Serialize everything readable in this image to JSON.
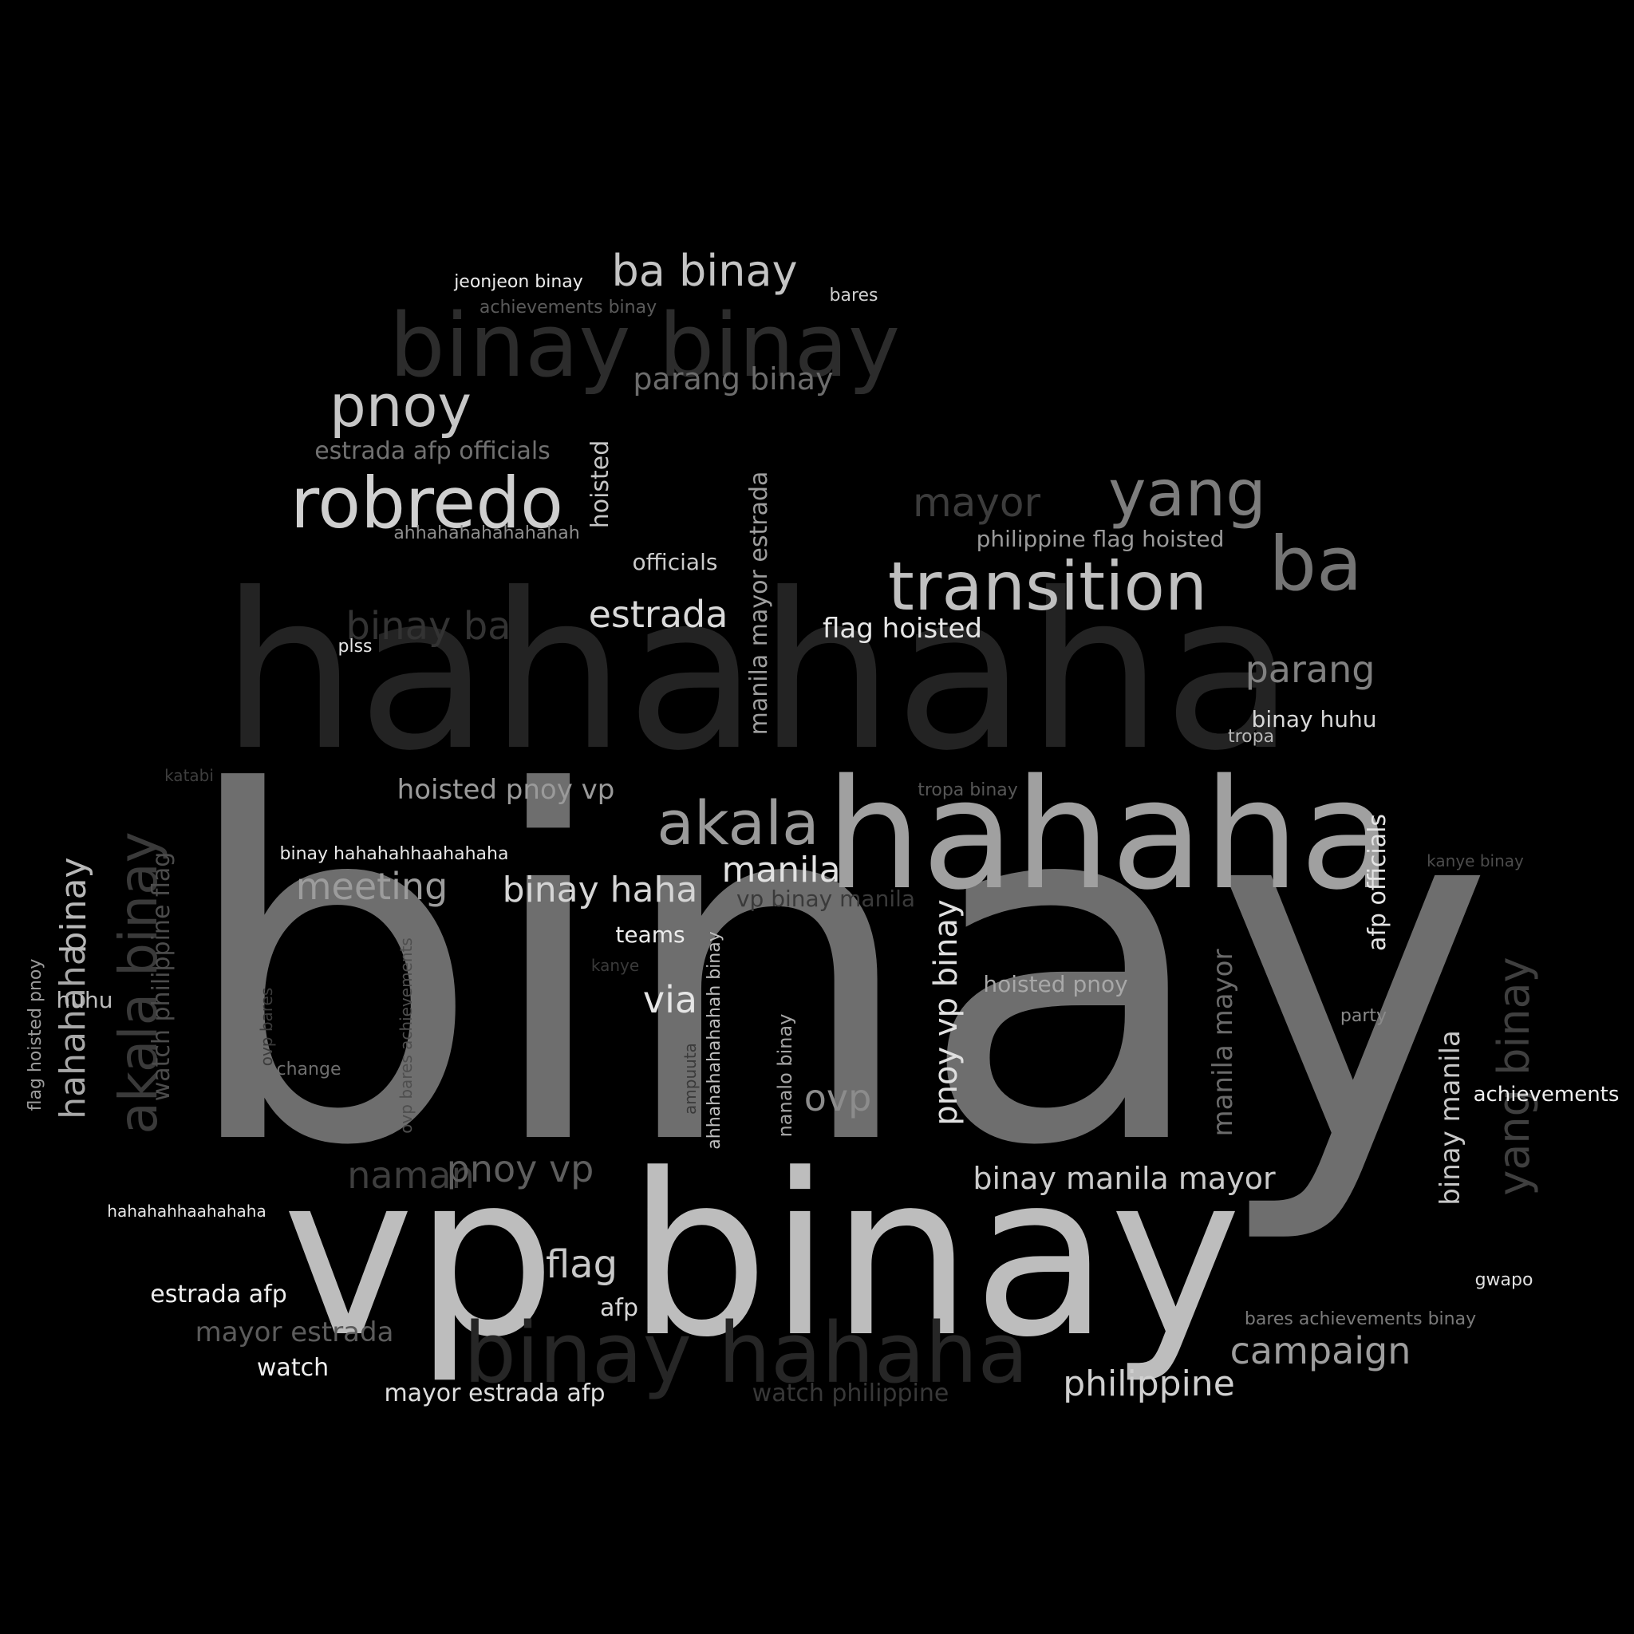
{
  "background": "#000000",
  "words": [
    {
      "text": "binay",
      "color": "#6e6e6e",
      "rotate": false
    },
    {
      "text": "hahahaha",
      "color": "#232323",
      "rotate": false
    },
    {
      "text": "vp binay",
      "color": "#bdbdbd",
      "rotate": false
    },
    {
      "text": "hahaha",
      "color": "#a0a0a0",
      "rotate": false
    },
    {
      "text": "binay binay",
      "color": "#2c2c2c",
      "rotate": false
    },
    {
      "text": "binay hahaha",
      "color": "#262626",
      "rotate": false
    },
    {
      "text": "robredo",
      "color": "#cfcfcf",
      "rotate": false
    },
    {
      "text": "transition",
      "color": "#c0c0c0",
      "rotate": false
    },
    {
      "text": "yang",
      "color": "#7d7d7d",
      "rotate": false
    },
    {
      "text": "ba",
      "color": "#747474",
      "rotate": false
    },
    {
      "text": "akala",
      "color": "#9a9a9a",
      "rotate": false
    },
    {
      "text": "pnoy",
      "color": "#c6c6c6",
      "rotate": false
    },
    {
      "text": "ba binay",
      "color": "#c4c4c4",
      "rotate": false
    },
    {
      "text": "akala binay",
      "color": "#3a3a3a",
      "rotate": true
    },
    {
      "text": "yang binay",
      "color": "#3f3f3f",
      "rotate": true
    },
    {
      "text": "mayor",
      "color": "#3c3c3c",
      "rotate": false
    },
    {
      "text": "estrada",
      "color": "#dadada",
      "rotate": false
    },
    {
      "text": "binay ba",
      "color": "#333333",
      "rotate": false
    },
    {
      "text": "parang",
      "color": "#808080",
      "rotate": false
    },
    {
      "text": "manila",
      "color": "#e2e2e2",
      "rotate": false
    },
    {
      "text": "meeting",
      "color": "#9c9c9c",
      "rotate": false
    },
    {
      "text": "binay haha",
      "color": "#d5d5d5",
      "rotate": false
    },
    {
      "text": "via",
      "color": "#e6e6e6",
      "rotate": false
    },
    {
      "text": "ovp",
      "color": "#8c8c8c",
      "rotate": false
    },
    {
      "text": "naman",
      "color": "#3e3e3e",
      "rotate": false
    },
    {
      "text": "pnoy vp",
      "color": "#5e5e5e",
      "rotate": false
    },
    {
      "text": "flag",
      "color": "#c9c9c9",
      "rotate": false
    },
    {
      "text": "campaign",
      "color": "#9e9e9e",
      "rotate": false
    },
    {
      "text": "philippine",
      "color": "#d0d0d0",
      "rotate": false
    },
    {
      "text": "binay manila mayor",
      "color": "#cbcbcb",
      "rotate": false
    },
    {
      "text": "parang binay",
      "color": "#6c6c6c",
      "rotate": false
    },
    {
      "text": "hoisted pnoy vp",
      "color": "#9a9a9a",
      "rotate": false
    },
    {
      "text": "mayor estrada",
      "color": "#5c5c5c",
      "rotate": false
    },
    {
      "text": "flag hoisted",
      "color": "#e6e6e6",
      "rotate": false
    },
    {
      "text": "estrada afp officials",
      "color": "#717171",
      "rotate": false
    },
    {
      "text": "pnoy vp binay",
      "color": "#e0e0e0",
      "rotate": true
    },
    {
      "text": "hahahaha",
      "color": "#a8a8a8",
      "rotate": true
    },
    {
      "text": "binay",
      "color": "#b8b8b8",
      "rotate": true
    },
    {
      "text": "manila mayor",
      "color": "#6a6a6a",
      "rotate": true
    },
    {
      "text": "binay manila",
      "color": "#c8c8c8",
      "rotate": true
    },
    {
      "text": "manila mayor estrada",
      "color": "#9e9e9e",
      "rotate": true
    },
    {
      "text": "hoisted",
      "color": "#c6c6c6",
      "rotate": true
    },
    {
      "text": "afp officials",
      "color": "#e4e4e4",
      "rotate": true
    },
    {
      "text": "watch philippine flag",
      "color": "#4c4c4c",
      "rotate": true
    },
    {
      "text": "estrada afp",
      "color": "#ededed",
      "rotate": false
    },
    {
      "text": "mayor estrada afp",
      "color": "#dedede",
      "rotate": false
    },
    {
      "text": "watch",
      "color": "#efefef",
      "rotate": false
    },
    {
      "text": "afp",
      "color": "#d8d8d8",
      "rotate": false
    },
    {
      "text": "officials",
      "color": "#cbcbcb",
      "rotate": false
    },
    {
      "text": "teams",
      "color": "#ededed",
      "rotate": false
    },
    {
      "text": "philippine flag hoisted",
      "color": "#9a9a9a",
      "rotate": false
    },
    {
      "text": "binay huhu",
      "color": "#d8d8d8",
      "rotate": false
    },
    {
      "text": "hoisted pnoy",
      "color": "#a8a8a8",
      "rotate": false
    },
    {
      "text": "vp binay manila",
      "color": "#3a3a3a",
      "rotate": false
    },
    {
      "text": "watch philippine",
      "color": "#383838",
      "rotate": false
    },
    {
      "text": "huhu",
      "color": "#bdbdbd",
      "rotate": false
    },
    {
      "text": "achievements",
      "color": "#f0f0f0",
      "rotate": false
    },
    {
      "text": "jeonjeon binay",
      "color": "#ececec",
      "rotate": false
    },
    {
      "text": "achievements binay",
      "color": "#5a5a5a",
      "rotate": false
    },
    {
      "text": "bares",
      "color": "#cfcfcf",
      "rotate": false
    },
    {
      "text": "ahhahahahahahahah",
      "color": "#8e8e8e",
      "rotate": false
    },
    {
      "text": "plss",
      "color": "#e6e6e6",
      "rotate": false
    },
    {
      "text": "tropa",
      "color": "#b8b8b8",
      "rotate": false
    },
    {
      "text": "katabi",
      "color": "#3e3e3e",
      "rotate": false
    },
    {
      "text": "tropa binay",
      "color": "#565656",
      "rotate": false
    },
    {
      "text": "binay hahahahhaahahaha",
      "color": "#e8e8e8",
      "rotate": false
    },
    {
      "text": "kanye binay",
      "color": "#4c4c4c",
      "rotate": false
    },
    {
      "text": "kanye",
      "color": "#3a3a3a",
      "rotate": false
    },
    {
      "text": "party",
      "color": "#8a8a8a",
      "rotate": false
    },
    {
      "text": "change",
      "color": "#6e6e6e",
      "rotate": false
    },
    {
      "text": "hahahahhaahahaha",
      "color": "#e6e6e6",
      "rotate": false
    },
    {
      "text": "bares achievements binay",
      "color": "#7a7a7a",
      "rotate": false
    },
    {
      "text": "gwapo",
      "color": "#e0e0e0",
      "rotate": false
    },
    {
      "text": "flag hoisted pnoy",
      "color": "#9a9a9a",
      "rotate": true
    },
    {
      "text": "ovp bares",
      "color": "#3c3c3c",
      "rotate": true
    },
    {
      "text": "ovp bares achievements",
      "color": "#4e4e4e",
      "rotate": true
    },
    {
      "text": "ahhahahahahahah binay",
      "color": "#bdbdbd",
      "rotate": true
    },
    {
      "text": "ampuuta",
      "color": "#3a3a3a",
      "rotate": true
    },
    {
      "text": "nanalo binay",
      "color": "#a3a3a3",
      "rotate": true
    }
  ]
}
